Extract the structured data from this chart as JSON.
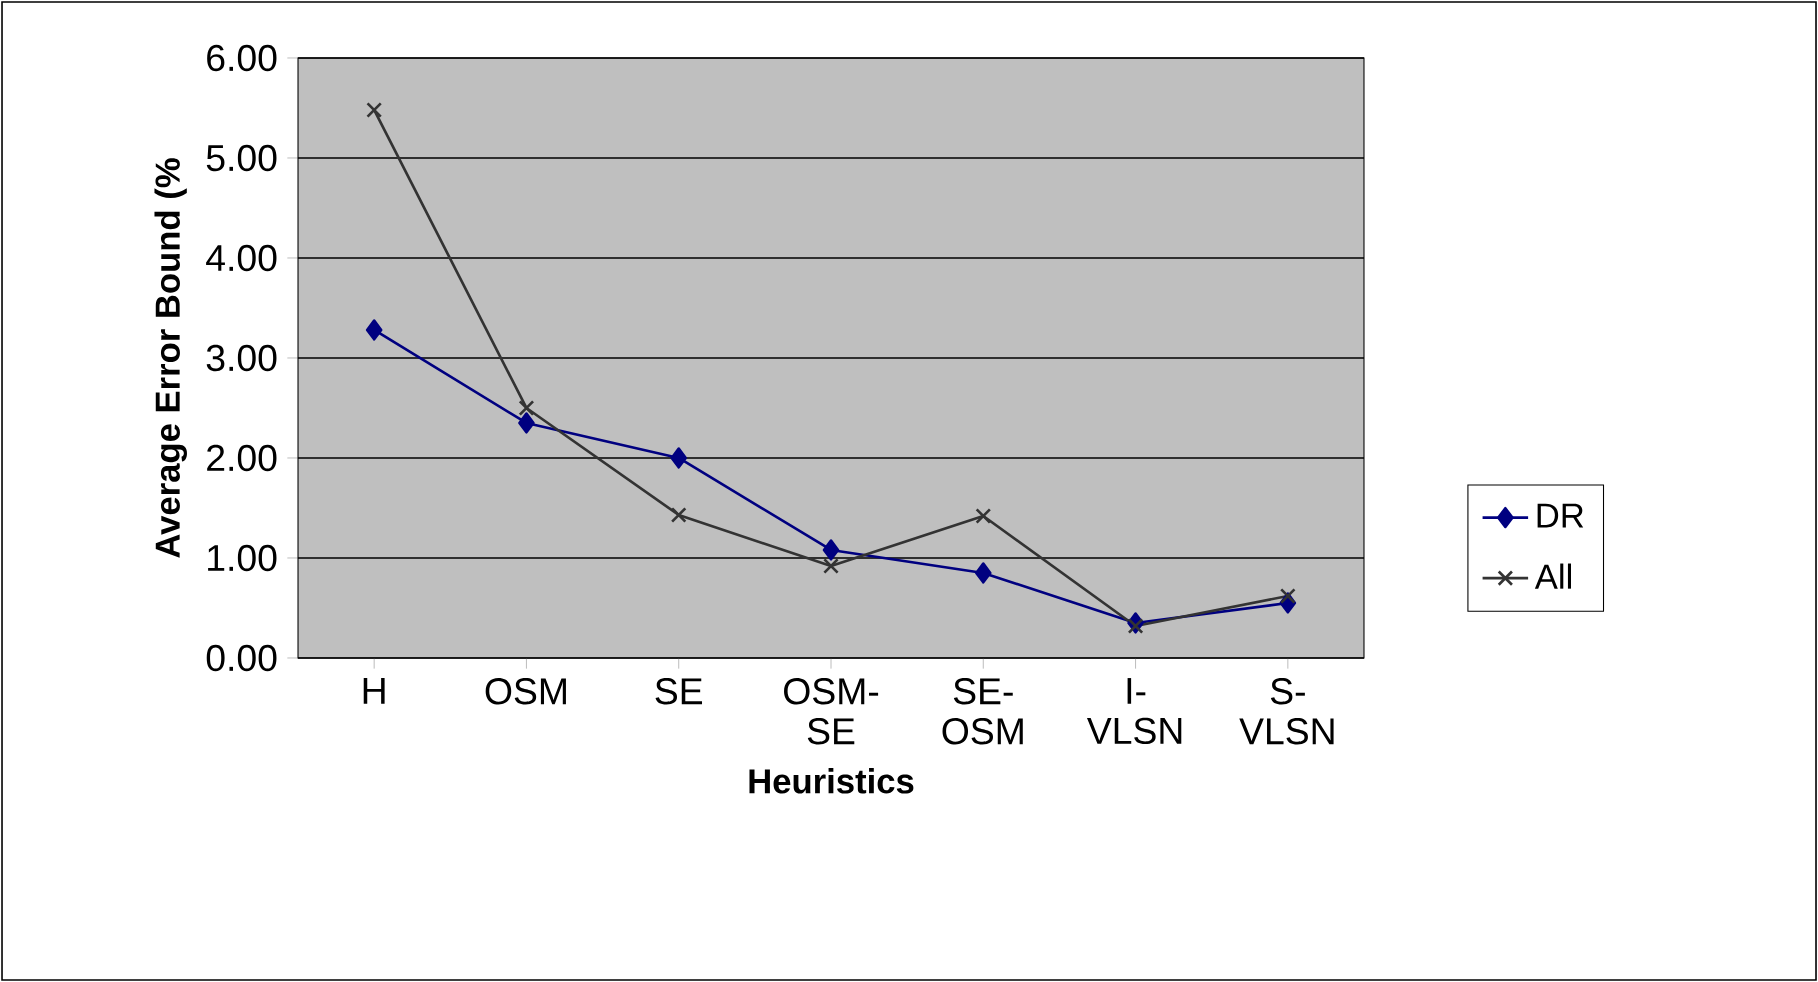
{
  "chart_data": {
    "type": "line",
    "xlabel": "Heuristics",
    "ylabel": "Average Error Bound (%",
    "categories": [
      "H",
      "OSM",
      "SE",
      "OSM-SE",
      "SE-OSM",
      "I-VLSN",
      "S-VLSN"
    ],
    "series": [
      {
        "name": "DR",
        "color": "#000080",
        "marker": "diamond",
        "values": [
          3.28,
          2.35,
          2.0,
          1.08,
          0.85,
          0.35,
          0.55
        ]
      },
      {
        "name": "All",
        "color": "#333333",
        "marker": "cross",
        "values": [
          5.48,
          2.5,
          1.43,
          0.92,
          1.42,
          0.32,
          0.62
        ]
      }
    ],
    "ylim": [
      0,
      6
    ],
    "yticks": [
      {
        "value": 0,
        "label": "0.00"
      },
      {
        "value": 1,
        "label": "1.00"
      },
      {
        "value": 2,
        "label": "2.00"
      },
      {
        "value": 3,
        "label": "3.00"
      },
      {
        "value": 4,
        "label": "4.00"
      },
      {
        "value": 5,
        "label": "5.00"
      },
      {
        "value": 6,
        "label": "6.00"
      }
    ],
    "grid": "y",
    "legend": "right",
    "line_style": "solid"
  }
}
